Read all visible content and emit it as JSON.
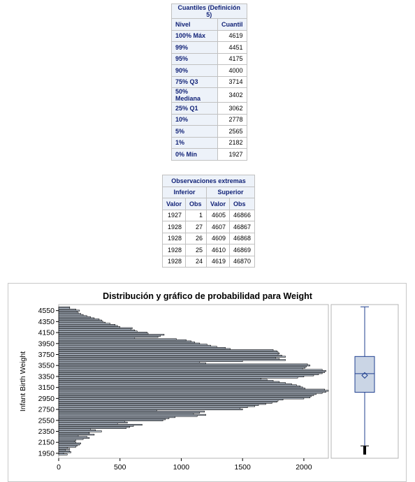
{
  "quantiles": {
    "title": "Cuantiles (Definición 5)",
    "col_level": "Nivel",
    "col_value": "Cuantil",
    "rows": [
      {
        "level": "100% Máx",
        "value": "4619"
      },
      {
        "level": "99%",
        "value": "4451"
      },
      {
        "level": "95%",
        "value": "4175"
      },
      {
        "level": "90%",
        "value": "4000"
      },
      {
        "level": "75% Q3",
        "value": "3714"
      },
      {
        "level": "50% Mediana",
        "value": "3402"
      },
      {
        "level": "25% Q1",
        "value": "3062"
      },
      {
        "level": "10%",
        "value": "2778"
      },
      {
        "level": "5%",
        "value": "2565"
      },
      {
        "level": "1%",
        "value": "2182"
      },
      {
        "level": "0% Mín",
        "value": "1927"
      }
    ]
  },
  "extremes": {
    "title": "Observaciones extremas",
    "lower_label": "Inferior",
    "upper_label": "Superior",
    "col_value": "Valor",
    "col_obs": "Obs",
    "rows": [
      {
        "low_value": "1927",
        "low_obs": "1",
        "high_value": "4605",
        "high_obs": "46866"
      },
      {
        "low_value": "1928",
        "low_obs": "27",
        "high_value": "4607",
        "high_obs": "46867"
      },
      {
        "low_value": "1928",
        "low_obs": "26",
        "high_value": "4609",
        "high_obs": "46868"
      },
      {
        "low_value": "1928",
        "low_obs": "25",
        "high_value": "4610",
        "high_obs": "46869"
      },
      {
        "low_value": "1928",
        "low_obs": "24",
        "high_value": "4619",
        "high_obs": "46870"
      }
    ]
  },
  "chart_data": {
    "type": "bar",
    "orientation": "horizontal",
    "title": "Distribución y gráfico de probabilidad para Weight",
    "ylabel": "Infant Birth Weight",
    "xlabel": "",
    "xlim": [
      0,
      2200
    ],
    "ylim": [
      1860,
      4660
    ],
    "x_ticks": [
      0,
      500,
      1000,
      1500,
      2000
    ],
    "y_ticks": [
      1950,
      2150,
      2350,
      2550,
      2750,
      2950,
      3150,
      3350,
      3550,
      3750,
      3950,
      4150,
      4350,
      4550
    ],
    "grid": false,
    "fill_color": "#cad5e5",
    "outline_color": "#000000",
    "bin_width": 20,
    "categories": [
      1930,
      1950,
      1970,
      1990,
      2010,
      2030,
      2050,
      2070,
      2090,
      2110,
      2130,
      2150,
      2170,
      2190,
      2210,
      2230,
      2250,
      2270,
      2290,
      2310,
      2330,
      2350,
      2370,
      2390,
      2410,
      2430,
      2450,
      2470,
      2490,
      2510,
      2530,
      2550,
      2570,
      2590,
      2610,
      2630,
      2650,
      2670,
      2690,
      2710,
      2730,
      2750,
      2770,
      2790,
      2810,
      2830,
      2850,
      2870,
      2890,
      2910,
      2930,
      2950,
      2970,
      2990,
      3010,
      3030,
      3050,
      3070,
      3090,
      3110,
      3130,
      3150,
      3170,
      3190,
      3210,
      3230,
      3250,
      3270,
      3290,
      3310,
      3330,
      3350,
      3370,
      3390,
      3410,
      3430,
      3450,
      3470,
      3490,
      3510,
      3530,
      3550,
      3570,
      3590,
      3610,
      3630,
      3650,
      3670,
      3690,
      3710,
      3730,
      3750,
      3770,
      3790,
      3810,
      3830,
      3850,
      3870,
      3890,
      3910,
      3930,
      3950,
      3970,
      3990,
      4010,
      4030,
      4050,
      4070,
      4090,
      4110,
      4130,
      4150,
      4170,
      4190,
      4210,
      4230,
      4250,
      4270,
      4290,
      4310,
      4330,
      4350,
      4370,
      4390,
      4410,
      4430,
      4450,
      4470,
      4490,
      4510,
      4530,
      4550,
      4570,
      4590,
      4610
    ],
    "values": [
      70,
      40,
      100,
      90,
      55,
      90,
      70,
      140,
      150,
      170,
      180,
      140,
      130,
      140,
      200,
      250,
      230,
      160,
      290,
      250,
      250,
      350,
      300,
      260,
      550,
      580,
      610,
      680,
      480,
      560,
      540,
      850,
      870,
      900,
      950,
      1130,
      1200,
      1100,
      1150,
      1190,
      800,
      1500,
      1480,
      1540,
      1600,
      1630,
      1690,
      1740,
      1780,
      1790,
      1830,
      2000,
      2050,
      2060,
      2080,
      2100,
      2150,
      2180,
      2200,
      2170,
      2010,
      1990,
      1970,
      1940,
      1900,
      1850,
      1800,
      1750,
      1700,
      1650,
      1950,
      2000,
      2080,
      2120,
      2150,
      2170,
      2180,
      2150,
      1990,
      2010,
      2020,
      2050,
      2030,
      1200,
      1150,
      1500,
      1850,
      1800,
      1770,
      1850,
      1820,
      1790,
      1800,
      1790,
      1780,
      1750,
      1400,
      1360,
      1290,
      1240,
      1210,
      1150,
      1110,
      1080,
      1040,
      960,
      620,
      810,
      830,
      860,
      730,
      720,
      640,
      620,
      590,
      600,
      500,
      480,
      460,
      420,
      380,
      360,
      350,
      330,
      290,
      260,
      230,
      200,
      180,
      160,
      150,
      170,
      140,
      90,
      90
    ]
  },
  "boxplot": {
    "min": 1927,
    "q1": 3062,
    "median": 3402,
    "mean": 3370,
    "q3": 3714,
    "whisker_low": 2085,
    "whisker_high": 4619,
    "outlier_low": 1927,
    "outlier_high": 2080,
    "color": "#1f3f8f"
  }
}
